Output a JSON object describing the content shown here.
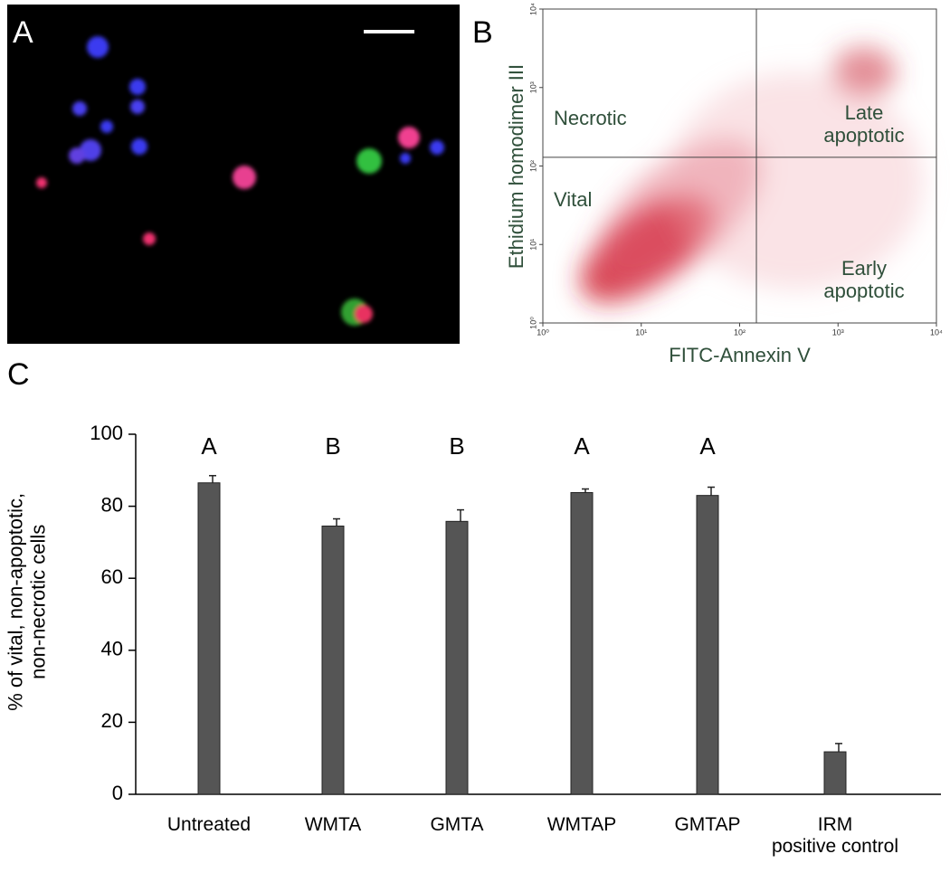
{
  "chart_data": [
    {
      "type": "image",
      "panel": "A"
    },
    {
      "type": "quadrant",
      "panel": "B",
      "xlabel": "FITC-Annexin V",
      "ylabel": "Ethidium homodimer III",
      "log_scale": true,
      "xlim": [
        1,
        10000
      ],
      "ylim": [
        1,
        10000
      ],
      "xticks": [
        {
          "value": 1,
          "label": "10⁰"
        },
        {
          "value": 10,
          "label": "10¹"
        },
        {
          "value": 100,
          "label": "10²"
        },
        {
          "value": 1000,
          "label": "10³"
        },
        {
          "value": 10000,
          "label": "10⁴"
        }
      ],
      "yticks": [
        {
          "value": 1,
          "label": "10⁰"
        },
        {
          "value": 10,
          "label": "10¹"
        },
        {
          "value": 100,
          "label": "10²"
        },
        {
          "value": 1000,
          "label": "10³"
        },
        {
          "value": 10000,
          "label": "10⁴"
        }
      ],
      "quadrant_x": 148,
      "quadrant_y": 129,
      "quadrant_labels": [
        "Necrotic",
        "Late\napoptotic",
        "Vital",
        "Early\napoptotic"
      ],
      "color": "#c0202a"
    },
    {
      "type": "bar",
      "panel": "C",
      "ylabel": "% of vital, non-apoptotic,\nnon-necrotic cells",
      "categories": [
        "Untreated",
        "WMTA",
        "GMTA",
        "WMTAP",
        "GMTAP",
        "IRM\npositive control"
      ],
      "values": [
        86.5,
        74.5,
        75.8,
        83.8,
        83,
        11.8
      ],
      "errors": [
        2,
        2,
        3.2,
        1,
        2.3,
        2.3
      ],
      "annotations": [
        "A",
        "B",
        "B",
        "A",
        "A",
        null
      ],
      "ylim": [
        0,
        100
      ],
      "yticks": [
        0,
        20,
        40,
        60,
        80,
        100
      ],
      "color": "#555555"
    }
  ]
}
